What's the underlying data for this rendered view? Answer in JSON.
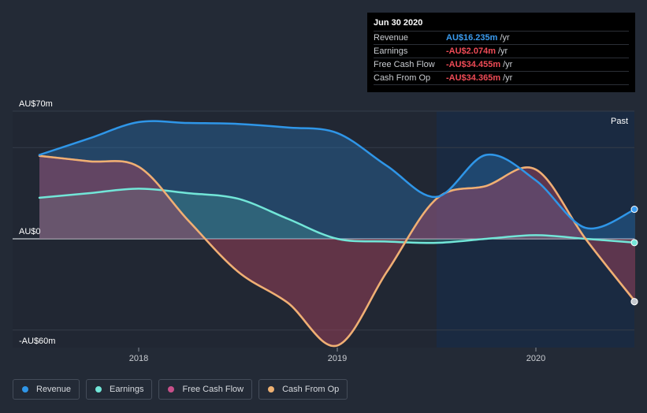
{
  "tooltip": {
    "date": "Jun 30 2020",
    "rows": [
      {
        "label": "Revenue",
        "value": "AU$16.235m",
        "unit": "/yr",
        "color": "#3b9cf0"
      },
      {
        "label": "Earnings",
        "value": "-AU$2.074m",
        "unit": "/yr",
        "color": "#ef4b56"
      },
      {
        "label": "Free Cash Flow",
        "value": "-AU$34.455m",
        "unit": "/yr",
        "color": "#ef4b56"
      },
      {
        "label": "Cash From Op",
        "value": "-AU$34.365m",
        "unit": "/yr",
        "color": "#ef4b56"
      }
    ]
  },
  "past_label": "Past",
  "legend": [
    {
      "label": "Revenue",
      "color": "#2f96e8"
    },
    {
      "label": "Earnings",
      "color": "#72e6d8"
    },
    {
      "label": "Free Cash Flow",
      "color": "#c8508a"
    },
    {
      "label": "Cash From Op",
      "color": "#eeb172"
    }
  ],
  "chart_data": {
    "type": "area",
    "title": "",
    "xlabel": "",
    "ylabel": "",
    "x_range": [
      2017.5,
      2020.5
    ],
    "ylim": [
      -60,
      70
    ],
    "y_tick_labels": [
      {
        "value": 70,
        "label": "AU$70m"
      },
      {
        "value": 0,
        "label": "AU$0"
      },
      {
        "value": -60,
        "label": "-AU$60m"
      }
    ],
    "x_tick_labels": [
      {
        "value": 2018,
        "label": "2018"
      },
      {
        "value": 2019,
        "label": "2019"
      },
      {
        "value": 2020,
        "label": "2020"
      }
    ],
    "gridlines_y": [
      70,
      50,
      0,
      -50
    ],
    "forecast_start": 2019.5,
    "series": [
      {
        "name": "Revenue",
        "color": "#2f96e8",
        "points": [
          [
            2017.5,
            46
          ],
          [
            2017.75,
            55
          ],
          [
            2018.0,
            64
          ],
          [
            2018.25,
            63.5
          ],
          [
            2018.5,
            63
          ],
          [
            2018.75,
            61
          ],
          [
            2019.0,
            58
          ],
          [
            2019.25,
            40
          ],
          [
            2019.5,
            23
          ],
          [
            2019.75,
            46
          ],
          [
            2020.0,
            32
          ],
          [
            2020.25,
            6
          ],
          [
            2020.5,
            16.2
          ]
        ]
      },
      {
        "name": "Earnings",
        "color": "#72e6d8",
        "points": [
          [
            2017.5,
            22.5
          ],
          [
            2017.75,
            25
          ],
          [
            2018.0,
            27.5
          ],
          [
            2018.25,
            25
          ],
          [
            2018.5,
            22
          ],
          [
            2018.75,
            11
          ],
          [
            2019.0,
            0
          ],
          [
            2019.25,
            -1.5
          ],
          [
            2019.5,
            -2.2
          ],
          [
            2019.75,
            0
          ],
          [
            2020.0,
            2
          ],
          [
            2020.25,
            0
          ],
          [
            2020.5,
            -2.1
          ]
        ]
      },
      {
        "name": "Free Cash Flow",
        "color": "#c8508a",
        "points": [
          [
            2017.5,
            45.5
          ],
          [
            2017.75,
            42.5
          ],
          [
            2018.0,
            39.5
          ],
          [
            2018.25,
            10
          ],
          [
            2018.5,
            -18
          ],
          [
            2018.75,
            -35
          ],
          [
            2019.0,
            -58.5
          ],
          [
            2019.25,
            -18
          ],
          [
            2019.5,
            22
          ],
          [
            2019.75,
            29
          ],
          [
            2020.0,
            38
          ],
          [
            2020.25,
            0
          ],
          [
            2020.5,
            -34.5
          ]
        ]
      },
      {
        "name": "Cash From Op",
        "color": "#eeb172",
        "points": [
          [
            2017.5,
            45.5
          ],
          [
            2017.75,
            42.5
          ],
          [
            2018.0,
            39.5
          ],
          [
            2018.25,
            10
          ],
          [
            2018.5,
            -18
          ],
          [
            2018.75,
            -35
          ],
          [
            2019.0,
            -58.5
          ],
          [
            2019.25,
            -18
          ],
          [
            2019.5,
            22
          ],
          [
            2019.75,
            29
          ],
          [
            2020.0,
            38
          ],
          [
            2020.25,
            0
          ],
          [
            2020.5,
            -34.4
          ]
        ]
      }
    ]
  }
}
